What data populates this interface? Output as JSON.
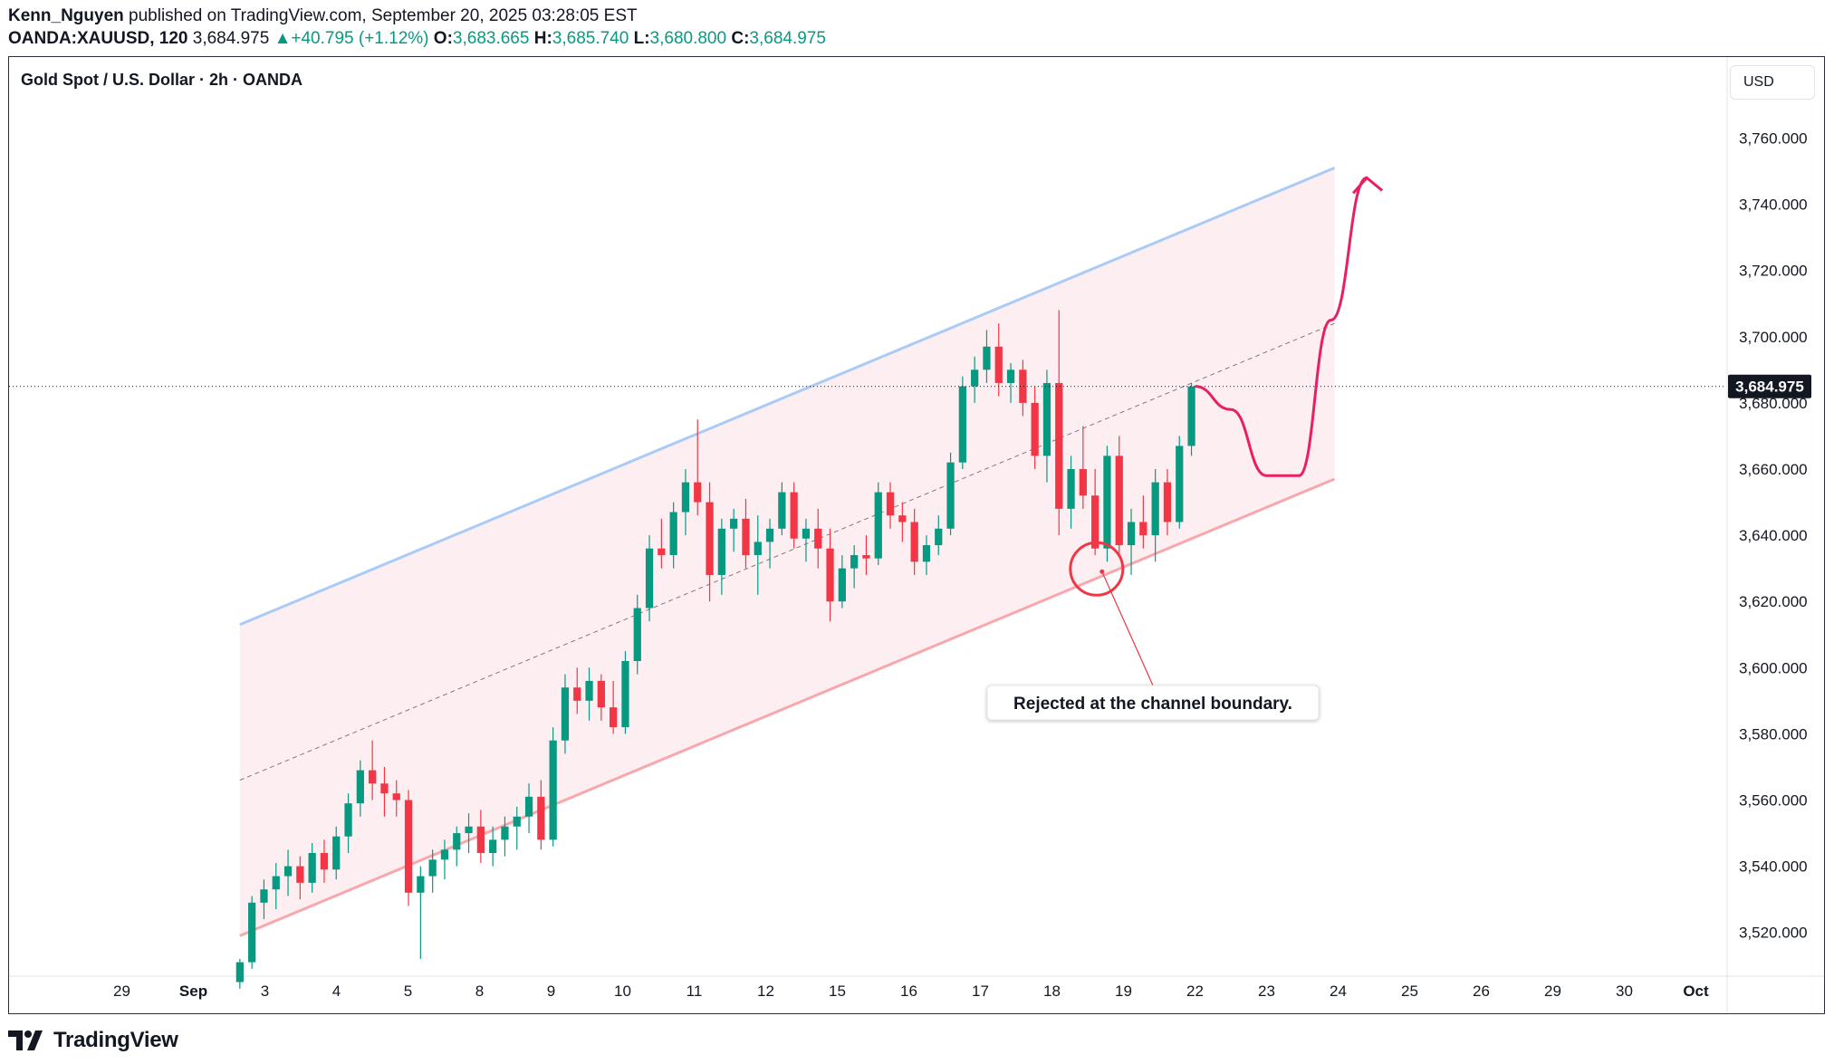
{
  "header": {
    "author": "Kenn_Nguyen",
    "published": "published on TradingView.com, September 20, 2025 03:28:05 EST",
    "symbol": "OANDA:XAUUSD, 120",
    "last": "3,684.975",
    "change": "+40.795 (+1.12%)",
    "open_label": "O:",
    "open": "3,683.665",
    "high_label": "H:",
    "high": "3,685.740",
    "low_label": "L:",
    "low": "3,680.800",
    "close_label": "C:",
    "close": "3,684.975"
  },
  "chart_title": "Gold Spot / U.S. Dollar · 2h · OANDA",
  "currency_button": "USD",
  "brand": "TradingView",
  "colors": {
    "up": "#089981",
    "down": "#f23645",
    "arrow": "#e91e63",
    "channel_upper": "#aacbf5",
    "channel_lower": "#f7a8ac",
    "channel_fill": "#fdebee"
  },
  "chart_data": {
    "type": "candlestick",
    "yaxis": {
      "ticks": [
        3520,
        3540,
        3560,
        3580,
        3600,
        3620,
        3640,
        3660,
        3680,
        3700,
        3720,
        3740,
        3760
      ],
      "tick_labels": [
        "3,520.000",
        "3,540.000",
        "3,560.000",
        "3,580.000",
        "3,600.000",
        "3,620.000",
        "3,640.000",
        "3,660.000",
        "3,680.000",
        "3,700.000",
        "3,720.000",
        "3,740.000",
        "3,760.000"
      ],
      "range": [
        3505,
        3782
      ]
    },
    "xaxis": {
      "labels": [
        "29",
        "Sep",
        "3",
        "4",
        "5",
        "8",
        "9",
        "10",
        "11",
        "12",
        "15",
        "16",
        "17",
        "18",
        "19",
        "22",
        "23",
        "24",
        "25",
        "26",
        "29",
        "30",
        "Oct"
      ],
      "label_index": [
        -4,
        -3,
        -2,
        -1,
        0,
        1,
        2,
        3,
        4,
        5,
        6,
        7,
        8,
        9,
        10,
        11,
        12,
        13,
        14,
        15,
        16,
        17,
        18
      ]
    },
    "current_price": {
      "value": 3684.975,
      "label": "3,684.975"
    },
    "channel": {
      "upper": {
        "start": [
          -2.35,
          3613
        ],
        "end": [
          12.95,
          3751
        ]
      },
      "lower": {
        "start": [
          -2.35,
          3519
        ],
        "end": [
          12.95,
          3657
        ]
      },
      "midline": true
    },
    "forecast_path": [
      [
        11.0,
        3685
      ],
      [
        11.5,
        3678
      ],
      [
        12.0,
        3658
      ],
      [
        12.45,
        3658
      ],
      [
        12.9,
        3705
      ],
      [
        13.4,
        3748
      ]
    ],
    "rejection_marker": {
      "t": 9.7,
      "price": 3629
    },
    "annotation": "Rejected at the channel boundary.",
    "candles": [
      [
        3505,
        3512,
        3503,
        3511
      ],
      [
        3511,
        3531,
        3509,
        3529
      ],
      [
        3529,
        3536,
        3524,
        3533
      ],
      [
        3533,
        3541,
        3527,
        3537
      ],
      [
        3537,
        3545,
        3531,
        3540
      ],
      [
        3540,
        3543,
        3530,
        3535
      ],
      [
        3535,
        3547,
        3532,
        3544
      ],
      [
        3544,
        3548,
        3535,
        3539
      ],
      [
        3539,
        3552,
        3536,
        3549
      ],
      [
        3549,
        3562,
        3544,
        3559
      ],
      [
        3559,
        3572,
        3555,
        3569
      ],
      [
        3569,
        3578,
        3560,
        3565
      ],
      [
        3565,
        3570,
        3555,
        3562
      ],
      [
        3562,
        3566,
        3555,
        3560
      ],
      [
        3560,
        3563,
        3528,
        3532
      ],
      [
        3532,
        3540,
        3512,
        3537
      ],
      [
        3537,
        3545,
        3532,
        3542
      ],
      [
        3542,
        3548,
        3536,
        3545
      ],
      [
        3545,
        3552,
        3540,
        3550
      ],
      [
        3550,
        3556,
        3544,
        3552
      ],
      [
        3552,
        3557,
        3541,
        3544
      ],
      [
        3544,
        3552,
        3540,
        3548
      ],
      [
        3548,
        3555,
        3543,
        3552
      ],
      [
        3552,
        3558,
        3545,
        3555
      ],
      [
        3555,
        3565,
        3550,
        3561
      ],
      [
        3561,
        3566,
        3545,
        3548
      ],
      [
        3548,
        3582,
        3546,
        3578
      ],
      [
        3578,
        3598,
        3574,
        3594
      ],
      [
        3594,
        3600,
        3586,
        3590
      ],
      [
        3590,
        3600,
        3584,
        3596
      ],
      [
        3596,
        3598,
        3584,
        3588
      ],
      [
        3588,
        3596,
        3580,
        3582
      ],
      [
        3582,
        3605,
        3580,
        3602
      ],
      [
        3602,
        3622,
        3598,
        3618
      ],
      [
        3618,
        3640,
        3614,
        3636
      ],
      [
        3636,
        3645,
        3630,
        3634
      ],
      [
        3634,
        3650,
        3630,
        3647
      ],
      [
        3647,
        3660,
        3640,
        3656
      ],
      [
        3656,
        3675,
        3646,
        3650
      ],
      [
        3650,
        3656,
        3620,
        3628
      ],
      [
        3628,
        3645,
        3622,
        3642
      ],
      [
        3642,
        3648,
        3635,
        3645
      ],
      [
        3645,
        3651,
        3630,
        3634
      ],
      [
        3634,
        3646,
        3622,
        3638
      ],
      [
        3638,
        3645,
        3630,
        3642
      ],
      [
        3642,
        3656,
        3640,
        3653
      ],
      [
        3653,
        3656,
        3636,
        3639
      ],
      [
        3639,
        3645,
        3632,
        3642
      ],
      [
        3642,
        3648,
        3630,
        3636
      ],
      [
        3636,
        3642,
        3614,
        3620
      ],
      [
        3620,
        3634,
        3618,
        3630
      ],
      [
        3630,
        3637,
        3624,
        3634
      ],
      [
        3634,
        3640,
        3628,
        3633
      ],
      [
        3633,
        3656,
        3631,
        3653
      ],
      [
        3653,
        3656,
        3642,
        3646
      ],
      [
        3646,
        3650,
        3638,
        3644
      ],
      [
        3644,
        3648,
        3628,
        3632
      ],
      [
        3632,
        3640,
        3628,
        3637
      ],
      [
        3637,
        3646,
        3634,
        3642
      ],
      [
        3642,
        3665,
        3640,
        3662
      ],
      [
        3662,
        3688,
        3660,
        3685
      ],
      [
        3685,
        3694,
        3680,
        3690
      ],
      [
        3690,
        3702,
        3686,
        3697
      ],
      [
        3697,
        3704,
        3682,
        3686
      ],
      [
        3686,
        3692,
        3680,
        3690
      ],
      [
        3690,
        3693,
        3676,
        3680
      ],
      [
        3680,
        3685,
        3660,
        3664
      ],
      [
        3664,
        3690,
        3656,
        3686
      ],
      [
        3686,
        3708,
        3640,
        3648
      ],
      [
        3648,
        3664,
        3642,
        3660
      ],
      [
        3660,
        3673,
        3648,
        3652
      ],
      [
        3652,
        3660,
        3634,
        3636
      ],
      [
        3636,
        3667,
        3632,
        3664
      ],
      [
        3664,
        3670,
        3634,
        3637
      ],
      [
        3637,
        3648,
        3628,
        3644
      ],
      [
        3644,
        3652,
        3636,
        3640
      ],
      [
        3640,
        3660,
        3632,
        3656
      ],
      [
        3656,
        3660,
        3640,
        3644
      ],
      [
        3644,
        3670,
        3642,
        3667
      ],
      [
        3667,
        3686,
        3664,
        3685
      ]
    ]
  }
}
